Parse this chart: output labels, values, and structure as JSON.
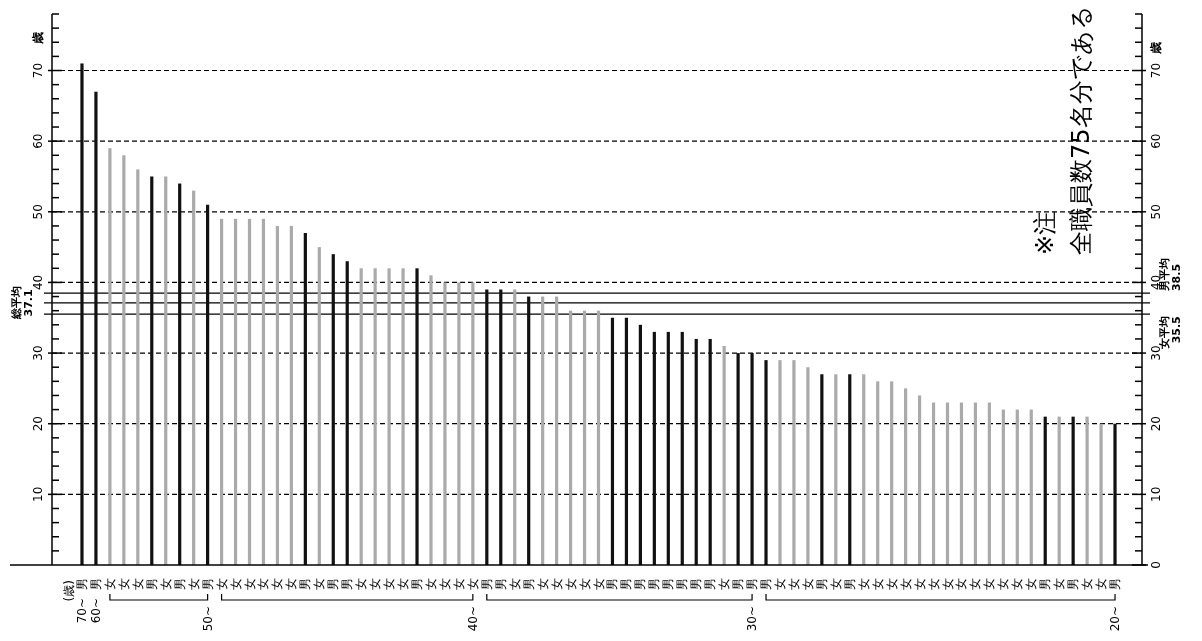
{
  "chart_data": {
    "type": "bar",
    "categories": [
      "男",
      "男",
      "女",
      "女",
      "女",
      "男",
      "女",
      "男",
      "女",
      "男",
      "女",
      "女",
      "女",
      "女",
      "女",
      "女",
      "男",
      "女",
      "男",
      "男",
      "女",
      "女",
      "女",
      "女",
      "男",
      "女",
      "女",
      "女",
      "女",
      "男",
      "男",
      "女",
      "男",
      "女",
      "女",
      "女",
      "女",
      "女",
      "男",
      "男",
      "男",
      "男",
      "男",
      "男",
      "男",
      "男",
      "女",
      "男",
      "男",
      "男",
      "女",
      "女",
      "女",
      "男",
      "女",
      "男",
      "女",
      "女",
      "女",
      "女",
      "女",
      "女",
      "女",
      "女",
      "女",
      "女",
      "女",
      "女",
      "女",
      "男",
      "女",
      "男",
      "女",
      "女",
      "男"
    ],
    "values": [
      71,
      67,
      59,
      58,
      56,
      55,
      55,
      54,
      53,
      51,
      49,
      49,
      49,
      49,
      48,
      48,
      47,
      45,
      44,
      43,
      42,
      42,
      42,
      42,
      42,
      41,
      40,
      40,
      40,
      39,
      39,
      39,
      38,
      38,
      38,
      36,
      36,
      36,
      35,
      35,
      34,
      33,
      33,
      33,
      32,
      32,
      31,
      30,
      30,
      29,
      29,
      29,
      28,
      27,
      27,
      27,
      27,
      26,
      26,
      25,
      24,
      23,
      23,
      23,
      23,
      23,
      22,
      22,
      22,
      21,
      21,
      21,
      21,
      20,
      20
    ],
    "colors": [
      "#111111",
      "#111111",
      "#aaaaaa",
      "#aaaaaa",
      "#aaaaaa",
      "#111111",
      "#aaaaaa",
      "#111111",
      "#aaaaaa",
      "#111111",
      "#aaaaaa",
      "#aaaaaa",
      "#aaaaaa",
      "#aaaaaa",
      "#aaaaaa",
      "#aaaaaa",
      "#111111",
      "#aaaaaa",
      "#111111",
      "#111111",
      "#aaaaaa",
      "#aaaaaa",
      "#aaaaaa",
      "#aaaaaa",
      "#111111",
      "#aaaaaa",
      "#aaaaaa",
      "#aaaaaa",
      "#aaaaaa",
      "#111111",
      "#111111",
      "#aaaaaa",
      "#111111",
      "#aaaaaa",
      "#aaaaaa",
      "#aaaaaa",
      "#aaaaaa",
      "#aaaaaa",
      "#111111",
      "#111111",
      "#111111",
      "#111111",
      "#111111",
      "#111111",
      "#111111",
      "#111111",
      "#aaaaaa",
      "#111111",
      "#111111",
      "#111111",
      "#aaaaaa",
      "#aaaaaa",
      "#aaaaaa",
      "#111111",
      "#aaaaaa",
      "#111111",
      "#aaaaaa",
      "#aaaaaa",
      "#aaaaaa",
      "#aaaaaa",
      "#aaaaaa",
      "#aaaaaa",
      "#aaaaaa",
      "#aaaaaa",
      "#aaaaaa",
      "#aaaaaa",
      "#aaaaaa",
      "#aaaaaa",
      "#aaaaaa",
      "#111111",
      "#aaaaaa",
      "#111111",
      "#aaaaaa",
      "#aaaaaa",
      "#111111"
    ],
    "ylabel": "歳",
    "y2label": "歳",
    "ylim": [
      0,
      78
    ],
    "yticks": [
      10,
      20,
      30,
      40,
      50,
      60,
      70
    ],
    "y2lim": [
      0,
      78
    ],
    "y2ticks": [
      0,
      10,
      20,
      30,
      40,
      50,
      60,
      70
    ],
    "grid": "y",
    "ref_lines": [
      {
        "axis": "y2",
        "value": 38.5,
        "label": "男平均\n38.5",
        "color": "#000000",
        "line_style": "solid"
      },
      {
        "axis": "y",
        "value": 37.1,
        "label": "総平均\n37.1",
        "color": "#000000",
        "line_style": "solid"
      },
      {
        "axis": "y2",
        "value": 35.5,
        "label": "女平均\n35.5",
        "color": "#000000",
        "line_style": "solid"
      }
    ],
    "annotations": [
      "(歳)",
      "70~",
      "60~",
      "50~",
      "40~",
      "30~",
      "20~",
      "※注",
      "全職員数75名分である"
    ]
  }
}
